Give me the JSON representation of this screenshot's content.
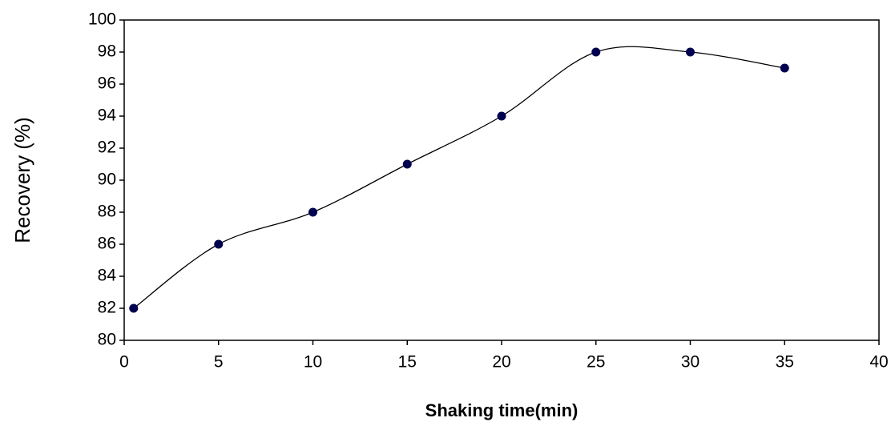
{
  "chart_data": {
    "type": "line",
    "x_label": "Shaking time(min)",
    "y_label": "Recovery (%)",
    "x": [
      0.5,
      5,
      10,
      15,
      20,
      25,
      30,
      35
    ],
    "series": [
      {
        "name": "Recovery",
        "color": "#000050",
        "values": [
          82,
          86,
          88,
          91,
          94,
          98,
          98,
          97
        ]
      }
    ],
    "xlim": [
      0,
      40
    ],
    "xticks": [
      0,
      5,
      10,
      15,
      20,
      25,
      30,
      35,
      40
    ],
    "ylim": [
      80,
      100
    ],
    "yticks": [
      80,
      82,
      84,
      86,
      88,
      90,
      92,
      94,
      96,
      98,
      100
    ],
    "smooth": true
  }
}
